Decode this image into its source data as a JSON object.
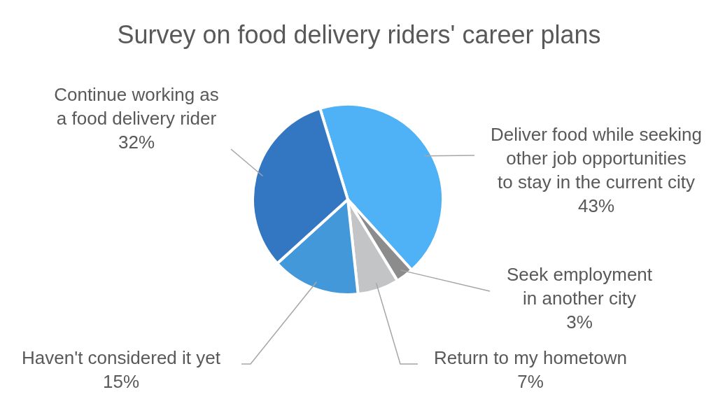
{
  "chart_data": {
    "type": "pie",
    "title": "Survey on food delivery riders' career plans",
    "categories": [
      "Deliver food while seeking other job opportunities to stay in the current city",
      "Seek employment in another city",
      "Return to my hometown",
      "Haven't considered it yet",
      "Continue working as a food delivery rider"
    ],
    "values": [
      43,
      3,
      7,
      15,
      32
    ],
    "value_labels": [
      "43%",
      "3%",
      "7%",
      "15%",
      "32%"
    ],
    "colors": [
      "#4fb1f6",
      "#8c8c8c",
      "#c3c4c6",
      "#4398da",
      "#3377c2"
    ]
  }
}
